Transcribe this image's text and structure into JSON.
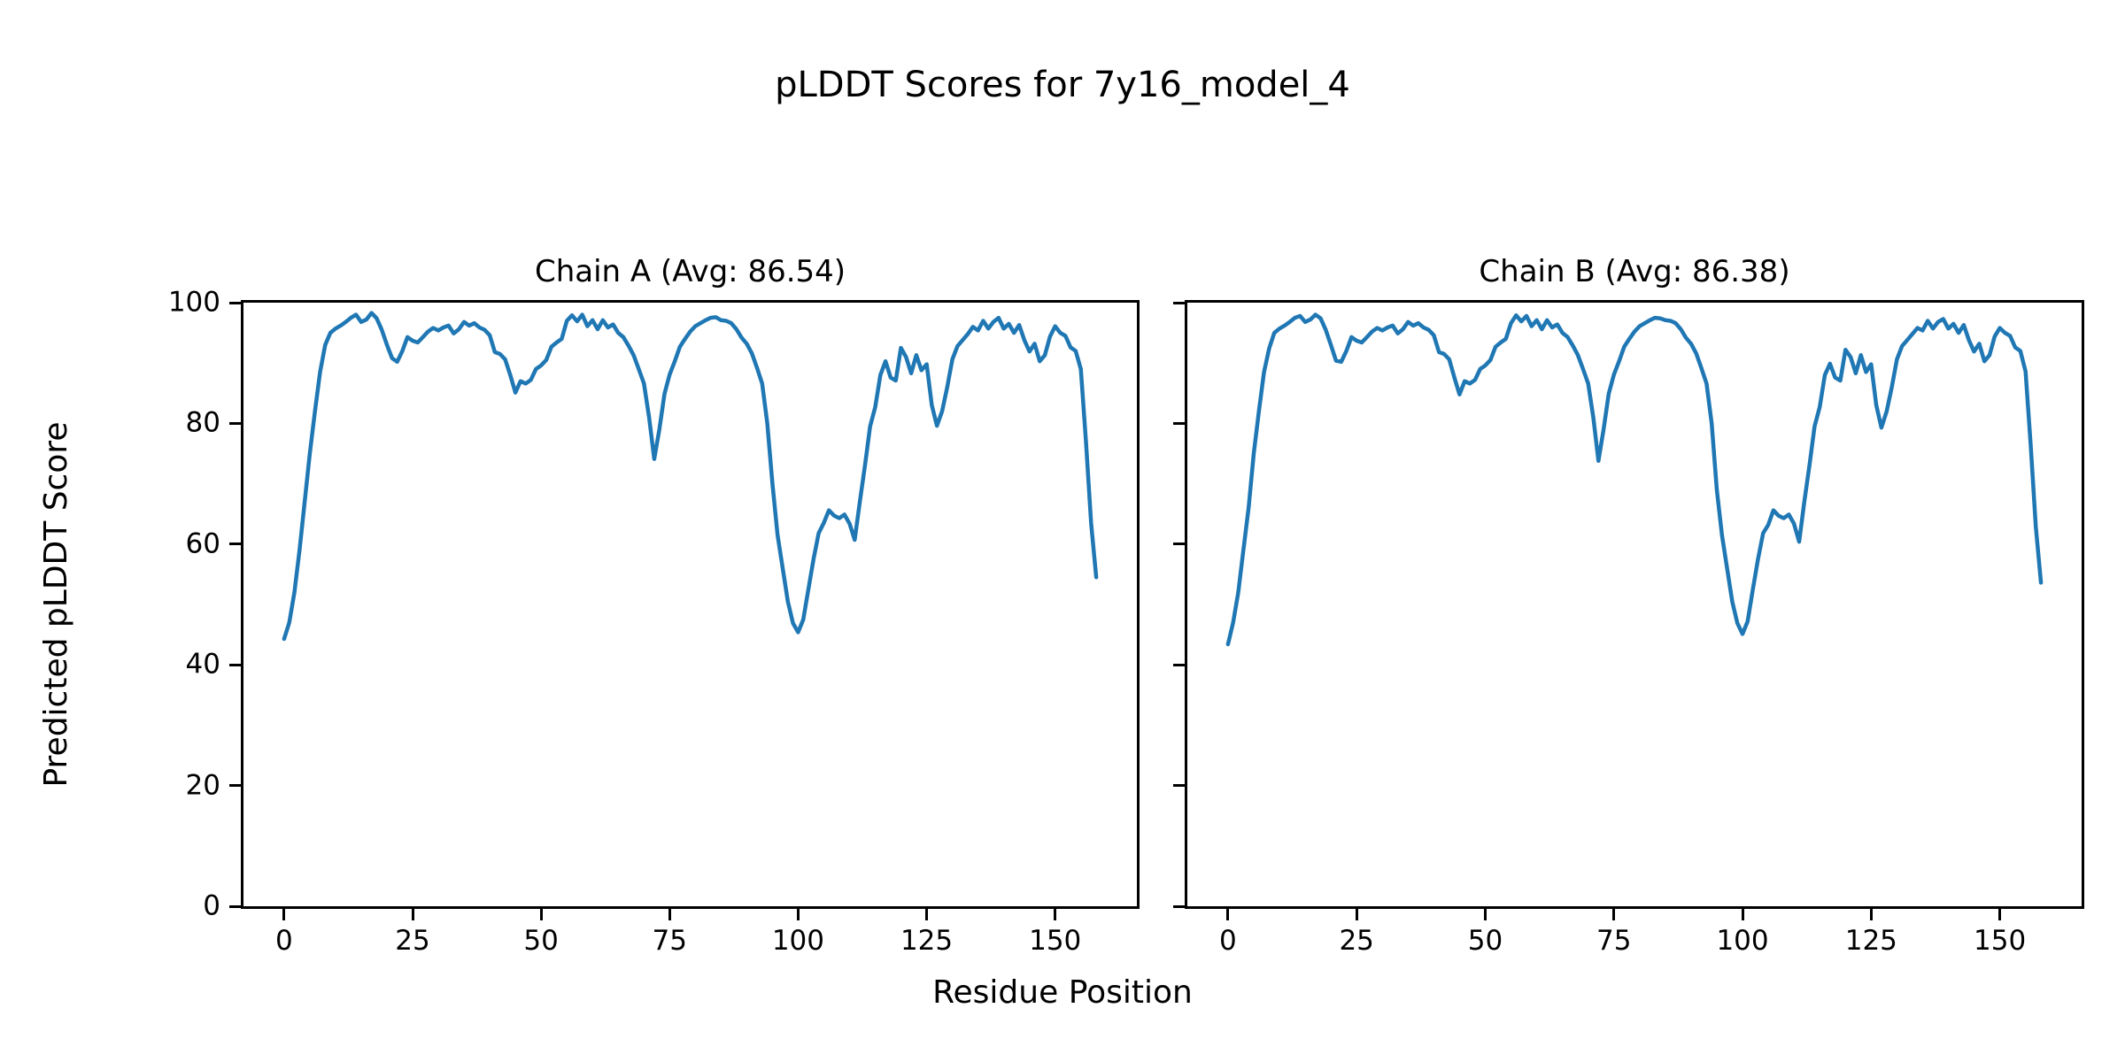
{
  "figure": {
    "suptitle": "pLDDT Scores for 7y16_model_4",
    "xlabel": "Residue Position",
    "ylabel": "Predicted pLDDT Score",
    "background_color": "#ffffff",
    "text_color": "#000000",
    "spine_color": "#000000"
  },
  "chart_data": [
    {
      "type": "line",
      "title": "Chain A (Avg: 86.54)",
      "chain": "A",
      "average": 86.54,
      "line_color": "#1f77b4",
      "grid": false,
      "legend": "none",
      "x_start": 0,
      "xlim": [
        -7.9,
        165.9
      ],
      "ylim": [
        0,
        100
      ],
      "xticks": [
        0,
        25,
        50,
        75,
        100,
        125,
        150
      ],
      "yticks": [
        0,
        20,
        40,
        60,
        80,
        100
      ],
      "show_y_tick_labels": true,
      "values": [
        44.3,
        47.0,
        52.0,
        59.0,
        67.0,
        75.0,
        82.0,
        88.5,
        93.0,
        95.0,
        95.7,
        96.2,
        96.8,
        97.5,
        98.0,
        96.8,
        97.2,
        98.3,
        97.4,
        95.5,
        93.0,
        90.8,
        90.2,
        92.0,
        94.3,
        93.7,
        93.4,
        94.3,
        95.2,
        95.8,
        95.4,
        95.9,
        96.2,
        94.9,
        95.6,
        96.8,
        96.2,
        96.6,
        95.9,
        95.5,
        94.6,
        91.8,
        91.5,
        90.6,
        88.0,
        85.1,
        87.0,
        86.6,
        87.2,
        89.0,
        89.6,
        90.5,
        92.7,
        93.4,
        94.0,
        97.0,
        97.9,
        96.9,
        98.0,
        96.1,
        97.1,
        95.6,
        97.1,
        95.9,
        96.4,
        95.0,
        94.3,
        92.9,
        91.3,
        89.0,
        86.6,
        81.0,
        74.1,
        79.0,
        84.9,
        88.1,
        90.3,
        92.7,
        94.0,
        95.2,
        96.1,
        96.6,
        97.1,
        97.5,
        97.6,
        97.1,
        97.0,
        96.6,
        95.6,
        94.2,
        93.2,
        91.6,
        89.2,
        86.6,
        80.0,
        70.0,
        61.5,
        56.0,
        50.5,
        46.9,
        45.4,
        47.5,
        52.5,
        57.5,
        61.8,
        63.5,
        65.6,
        64.7,
        64.3,
        64.9,
        63.4,
        60.7,
        67.0,
        73.0,
        79.5,
        82.7,
        88.0,
        90.3,
        87.6,
        87.1,
        92.5,
        91.0,
        88.3,
        91.3,
        88.8,
        89.8,
        83.0,
        79.6,
        82.0,
        86.0,
        90.6,
        92.8,
        93.8,
        94.8,
        96.0,
        95.4,
        97.0,
        95.7,
        96.8,
        97.5,
        95.7,
        96.5,
        95.0,
        96.3,
        93.8,
        91.9,
        93.2,
        90.3,
        91.3,
        94.4,
        96.1,
        95.0,
        94.5,
        92.6,
        92.0,
        89.0,
        77.0,
        63.5,
        54.5
      ]
    },
    {
      "type": "line",
      "title": "Chain B (Avg: 86.38)",
      "chain": "B",
      "average": 86.38,
      "line_color": "#1f77b4",
      "grid": false,
      "legend": "none",
      "x_start": 0,
      "xlim": [
        -7.9,
        165.9
      ],
      "ylim": [
        0,
        100
      ],
      "xticks": [
        0,
        25,
        50,
        75,
        100,
        125,
        150
      ],
      "yticks": [
        0,
        20,
        40,
        60,
        80,
        100
      ],
      "show_y_tick_labels": false,
      "values": [
        43.4,
        47.0,
        52.0,
        59.0,
        66.0,
        75.0,
        82.0,
        88.5,
        92.4,
        95.0,
        95.7,
        96.2,
        96.8,
        97.5,
        97.8,
        96.8,
        97.2,
        98.0,
        97.4,
        95.5,
        93.0,
        90.4,
        90.2,
        92.0,
        94.3,
        93.7,
        93.4,
        94.3,
        95.2,
        95.8,
        95.4,
        95.9,
        96.2,
        94.9,
        95.6,
        96.8,
        96.2,
        96.6,
        95.9,
        95.5,
        94.6,
        91.8,
        91.5,
        90.6,
        87.6,
        84.8,
        87.0,
        86.6,
        87.2,
        89.0,
        89.6,
        90.5,
        92.7,
        93.4,
        94.0,
        96.6,
        97.9,
        96.9,
        97.8,
        96.1,
        97.1,
        95.6,
        97.1,
        95.9,
        96.4,
        95.0,
        94.3,
        92.9,
        91.3,
        89.0,
        86.6,
        81.0,
        73.8,
        79.0,
        84.9,
        88.1,
        90.3,
        92.7,
        94.0,
        95.2,
        96.1,
        96.6,
        97.1,
        97.5,
        97.4,
        97.1,
        97.0,
        96.6,
        95.6,
        94.2,
        93.2,
        91.6,
        89.2,
        86.6,
        80.0,
        69.0,
        61.5,
        56.0,
        50.5,
        46.9,
        45.1,
        47.2,
        52.5,
        57.5,
        61.8,
        63.2,
        65.6,
        64.7,
        64.3,
        64.9,
        63.4,
        60.4,
        67.0,
        73.0,
        79.5,
        82.7,
        88.0,
        89.9,
        87.6,
        87.1,
        92.2,
        91.0,
        88.3,
        91.3,
        88.5,
        89.8,
        83.0,
        79.3,
        82.0,
        86.0,
        90.6,
        92.8,
        93.8,
        94.8,
        95.8,
        95.4,
        97.0,
        95.7,
        96.8,
        97.3,
        95.7,
        96.5,
        95.0,
        96.3,
        93.8,
        91.9,
        93.2,
        90.3,
        91.3,
        94.4,
        95.8,
        95.0,
        94.5,
        92.6,
        92.0,
        88.6,
        76.4,
        62.8,
        53.6
      ]
    }
  ]
}
